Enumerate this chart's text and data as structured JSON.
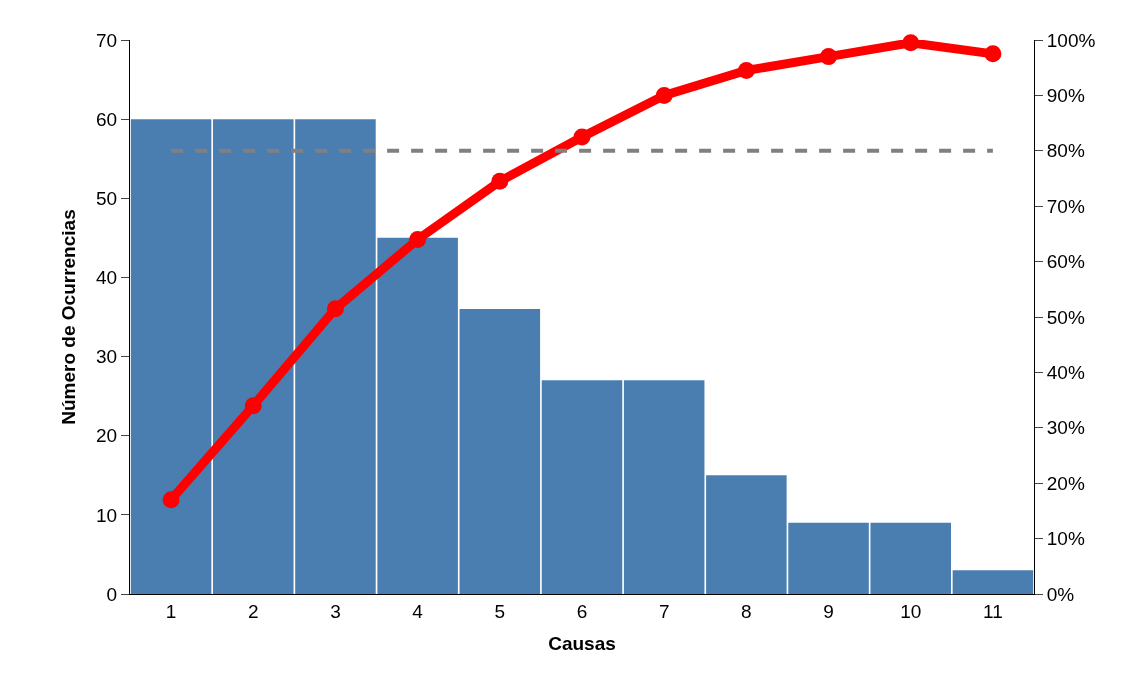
{
  "chart_data": {
    "type": "bar",
    "xlabel": "Causas",
    "ylabel": "Número de Ocurrencias",
    "categories": [
      "1",
      "2",
      "3",
      "4",
      "5",
      "6",
      "7",
      "8",
      "9",
      "10",
      "11"
    ],
    "series": [
      {
        "color": "#4a7eb0",
        "values": [
          60,
          60,
          60,
          45,
          36,
          27,
          27,
          15,
          9,
          9,
          3
        ]
      },
      {
        "type": "line",
        "axis": "y2",
        "color": "#ff0000",
        "marker": "circle",
        "line_style": "solid",
        "values": [
          17,
          34,
          51.5,
          64,
          74.5,
          82.5,
          90,
          94.5,
          97,
          99.5,
          97.5
        ]
      }
    ],
    "ylim": [
      0,
      70
    ],
    "yticks": [
      0,
      10,
      20,
      30,
      40,
      50,
      60,
      70
    ],
    "y2lim": [
      0,
      100
    ],
    "y2ticks": [
      {
        "value": 0,
        "label": "0%"
      },
      {
        "value": 10,
        "label": "10%"
      },
      {
        "value": 20,
        "label": "20%"
      },
      {
        "value": 30,
        "label": "30%"
      },
      {
        "value": 40,
        "label": "40%"
      },
      {
        "value": 50,
        "label": "50%"
      },
      {
        "value": 60,
        "label": "60%"
      },
      {
        "value": 70,
        "label": "70%"
      },
      {
        "value": 80,
        "label": "80%"
      },
      {
        "value": 90,
        "label": "90%"
      },
      {
        "value": 100,
        "label": "100%"
      }
    ],
    "ref_lines": [
      {
        "axis": "y2",
        "value": 80,
        "color": "#808080",
        "line_style": "dashed"
      }
    ]
  }
}
